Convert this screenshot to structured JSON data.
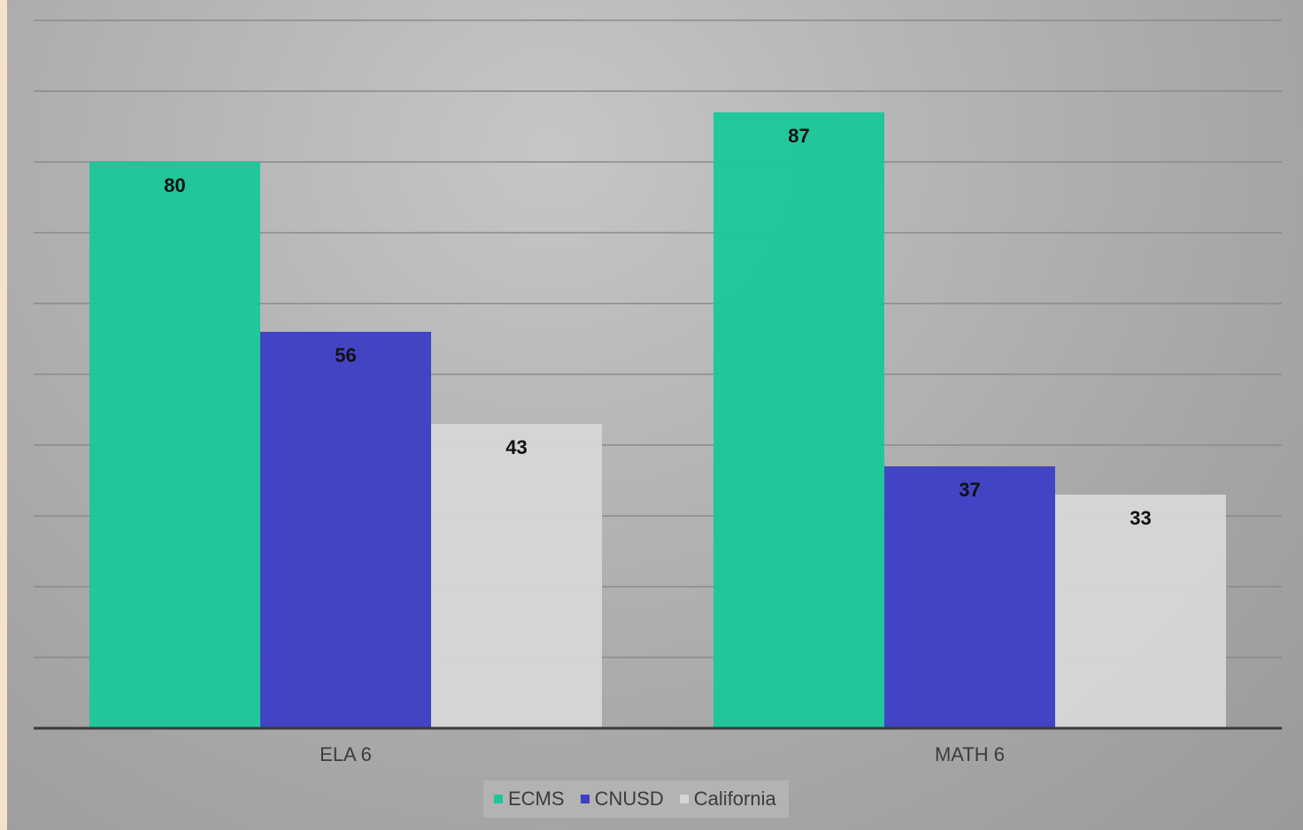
{
  "chart_data": {
    "type": "bar",
    "categories": [
      "ELA 6",
      "MATH 6"
    ],
    "series": [
      {
        "name": "ECMS",
        "values": [
          80,
          87
        ],
        "color": "#1cc79a"
      },
      {
        "name": "CNUSD",
        "values": [
          56,
          37
        ],
        "color": "#3e3fc4"
      },
      {
        "name": "California",
        "values": [
          43,
          33
        ],
        "color": "#d6d6d6"
      }
    ],
    "title": "",
    "xlabel": "",
    "ylabel": "",
    "ylim": [
      0,
      100
    ],
    "grid": true,
    "legend": "bottom",
    "data_labels": true
  }
}
